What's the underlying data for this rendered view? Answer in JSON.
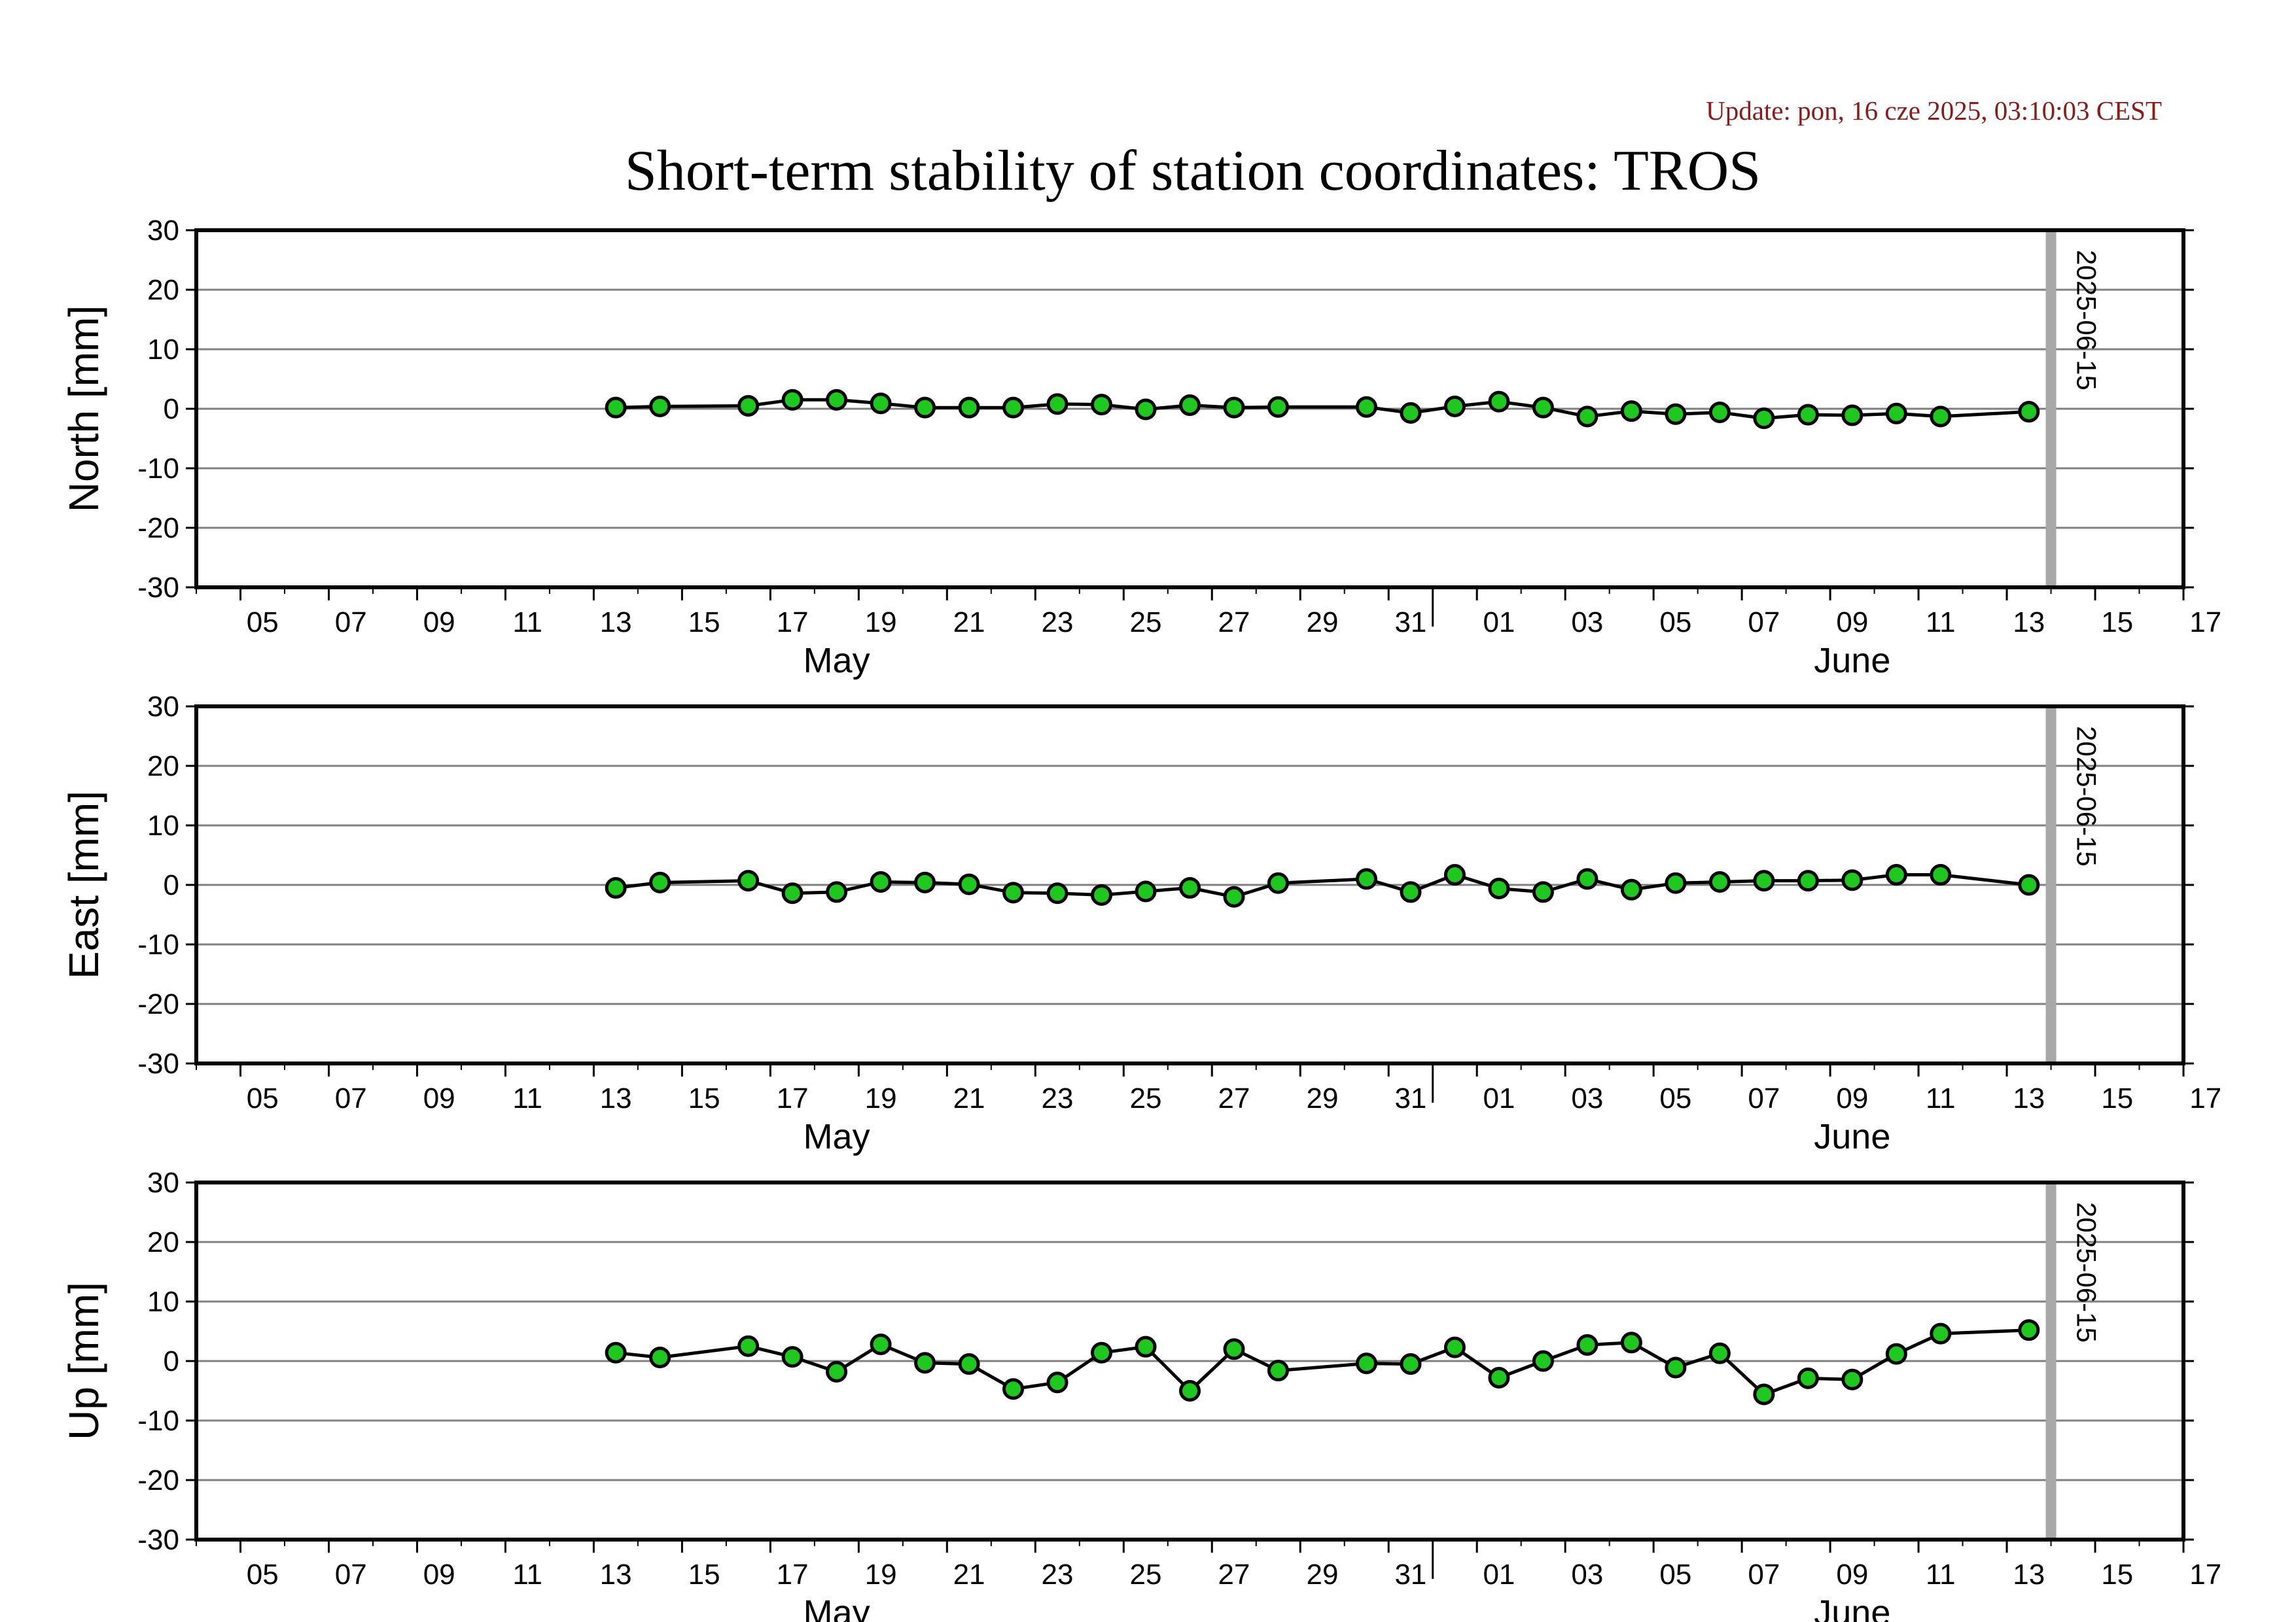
{
  "update_label": "Update: pon, 16 cze 2025, 03:10:03 CEST",
  "colors": {
    "update_text": "#8b1a1a",
    "marker_fill": "#1ec81e",
    "marker_edge": "#000000",
    "line": "#000000",
    "grid": "#808080",
    "today_bar": "#a8a8a8"
  },
  "chart_data": {
    "type": "line",
    "title": "Short-term stability of station coordinates: TROS",
    "x_axis": {
      "range": [
        "2025-05-04",
        "2025-06-18"
      ],
      "tick_labels": [
        "05",
        "07",
        "09",
        "11",
        "13",
        "15",
        "17",
        "19",
        "21",
        "23",
        "25",
        "27",
        "29",
        "31",
        "01",
        "03",
        "05",
        "07",
        "09",
        "11",
        "13",
        "15",
        "17"
      ],
      "month_labels": [
        "May",
        "June"
      ]
    },
    "y_ticks": [
      30,
      20,
      10,
      0,
      -10,
      -20,
      -30
    ],
    "marker_line": {
      "date": "2025-06-15",
      "label": "2025-06-15"
    },
    "x": [
      "2025-05-13",
      "2025-05-14",
      "2025-05-16",
      "2025-05-17",
      "2025-05-18",
      "2025-05-19",
      "2025-05-20",
      "2025-05-21",
      "2025-05-22",
      "2025-05-23",
      "2025-05-24",
      "2025-05-25",
      "2025-05-26",
      "2025-05-27",
      "2025-05-28",
      "2025-05-30",
      "2025-05-31",
      "2025-06-01",
      "2025-06-02",
      "2025-06-03",
      "2025-06-04",
      "2025-06-05",
      "2025-06-06",
      "2025-06-07",
      "2025-06-08",
      "2025-06-09",
      "2025-06-10",
      "2025-06-11",
      "2025-06-12",
      "2025-06-14"
    ],
    "panels": [
      {
        "ylabel": "North [mm]",
        "ylim": [
          -30,
          30
        ],
        "values": [
          0.2,
          0.4,
          0.5,
          1.5,
          1.5,
          0.9,
          0.2,
          0.2,
          0.2,
          0.8,
          0.7,
          -0.1,
          0.6,
          0.2,
          0.3,
          0.3,
          -0.7,
          0.4,
          1.2,
          0.2,
          -1.3,
          -0.4,
          -0.9,
          -0.6,
          -1.6,
          -1.0,
          -1.1,
          -0.8,
          -1.3,
          -0.5
        ]
      },
      {
        "ylabel": "East [mm]",
        "ylim": [
          -30,
          30
        ],
        "values": [
          -0.5,
          0.4,
          0.7,
          -1.4,
          -1.2,
          0.5,
          0.4,
          0.1,
          -1.3,
          -1.4,
          -1.7,
          -1.1,
          -0.5,
          -2.0,
          0.3,
          1.0,
          -1.2,
          1.7,
          -0.6,
          -1.2,
          1.0,
          -0.8,
          0.3,
          0.5,
          0.7,
          0.7,
          0.8,
          1.7,
          1.7,
          0.0
        ]
      },
      {
        "ylabel": "Up [mm]",
        "ylim": [
          -30,
          30
        ],
        "values": [
          1.4,
          0.6,
          2.5,
          0.7,
          -1.8,
          2.8,
          -0.3,
          -0.5,
          -4.7,
          -3.6,
          1.4,
          2.4,
          -5.0,
          2.0,
          -1.6,
          -0.4,
          -0.5,
          2.3,
          -2.8,
          0.0,
          2.7,
          3.1,
          -1.1,
          1.3,
          -5.6,
          -2.9,
          -3.1,
          1.2,
          4.6,
          5.2
        ]
      }
    ]
  }
}
